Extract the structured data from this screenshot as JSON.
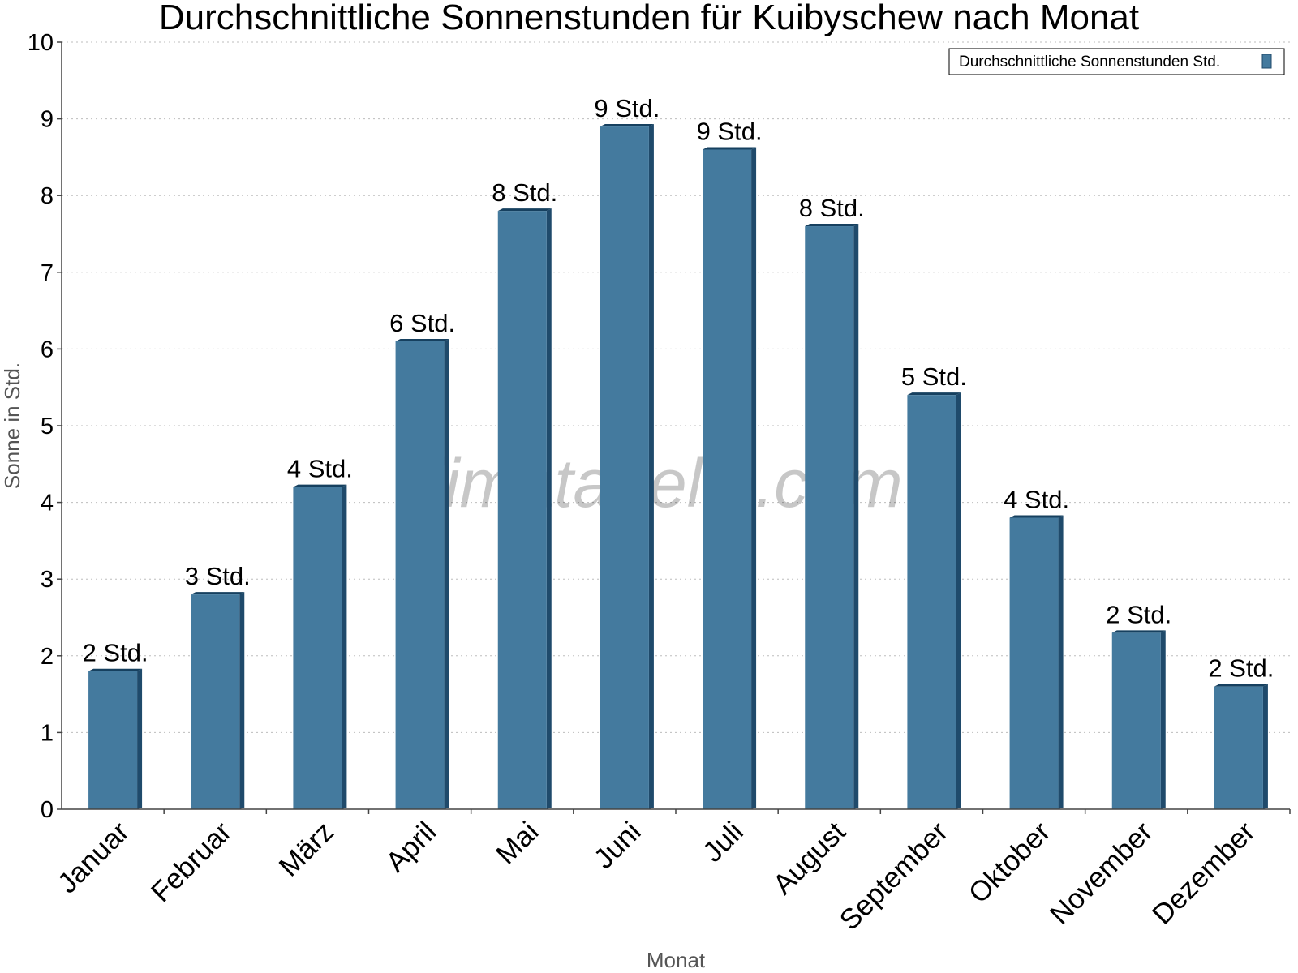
{
  "chart_data": {
    "type": "bar",
    "title": "Durchschnittliche Sonnenstunden für Kuibyschew nach Monat",
    "xlabel": "Monat",
    "ylabel": "Sonne in Std.",
    "ylim": [
      0,
      10
    ],
    "yticks": [
      "0",
      "1",
      "2",
      "3",
      "4",
      "5",
      "6",
      "7",
      "8",
      "9",
      "10"
    ],
    "grid": true,
    "legend_position": "top-right",
    "categories": [
      "Januar",
      "Februar",
      "März",
      "April",
      "Mai",
      "Juni",
      "Juli",
      "August",
      "September",
      "Oktober",
      "November",
      "Dezember"
    ],
    "series": [
      {
        "name": "Durchschnittliche Sonnenstunden Std.",
        "color": "#447a9e",
        "values": [
          1.8,
          2.8,
          4.2,
          6.1,
          7.8,
          8.9,
          8.6,
          7.6,
          5.4,
          3.8,
          2.3,
          1.6
        ],
        "labels": [
          "2 Std.",
          "3 Std.",
          "4 Std.",
          "6 Std.",
          "8 Std.",
          "9 Std.",
          "9 Std.",
          "8 Std.",
          "5 Std.",
          "4 Std.",
          "2 Std.",
          "2 Std."
        ]
      }
    ],
    "watermark": "klimatabelle.com"
  },
  "colors": {
    "bar_front": "#447a9e",
    "bar_side": "#1f4a6b",
    "bar_top": "#16405f"
  }
}
